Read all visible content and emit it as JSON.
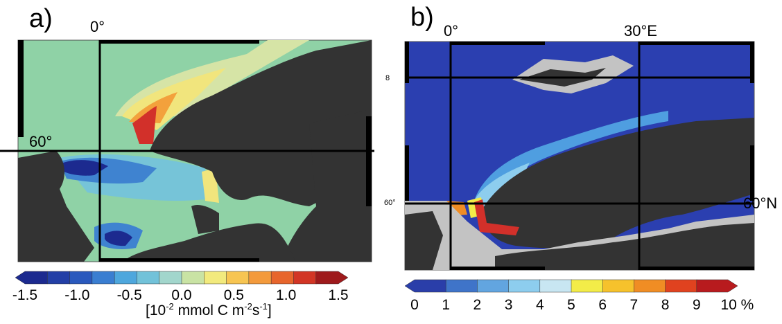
{
  "panel_a": {
    "letter": "a)",
    "lon_label": "0°",
    "lat_label": "60°",
    "colorbar": {
      "ticks": [
        "-1.5",
        "-1.0",
        "-0.5",
        "0.0",
        "0.5",
        "1.0",
        "1.5"
      ],
      "colors": [
        "#1c2a8f",
        "#233fa6",
        "#2a59bd",
        "#3a7ed1",
        "#4ea7dd",
        "#72c2d9",
        "#a2d6cc",
        "#c9e3a4",
        "#f2ea7d",
        "#f7c552",
        "#f39a3c",
        "#e7652c",
        "#d23525",
        "#9e1a1c"
      ],
      "unit_prefix": "[10",
      "unit_exp1": "-2",
      "unit_mid": " mmol C m",
      "unit_exp2": "-2",
      "unit_s": "s",
      "unit_exp3": "-1",
      "unit_suffix": "]"
    }
  },
  "panel_b": {
    "letter": "b)",
    "lon_label_0": "0°",
    "lon_label_30": "30°E",
    "lat_label_right": "60°N",
    "lat_label_small": "60°",
    "top_small_label": "8",
    "colorbar": {
      "ticks": [
        "0",
        "1",
        "2",
        "3",
        "4",
        "5",
        "6",
        "7",
        "8",
        "9",
        "10 %"
      ],
      "colors": [
        "#2a3ea9",
        "#3f74c9",
        "#62a5e0",
        "#8dcdee",
        "#c8e6f2",
        "#f3ec48",
        "#f6c22c",
        "#f08d24",
        "#e0421f",
        "#b81b1e"
      ]
    }
  },
  "colors": {
    "land": "#333333",
    "sea_a": "#8fd2a6",
    "sea_b": "#2b3fb0",
    "gray_b": "#c3c3c3"
  }
}
